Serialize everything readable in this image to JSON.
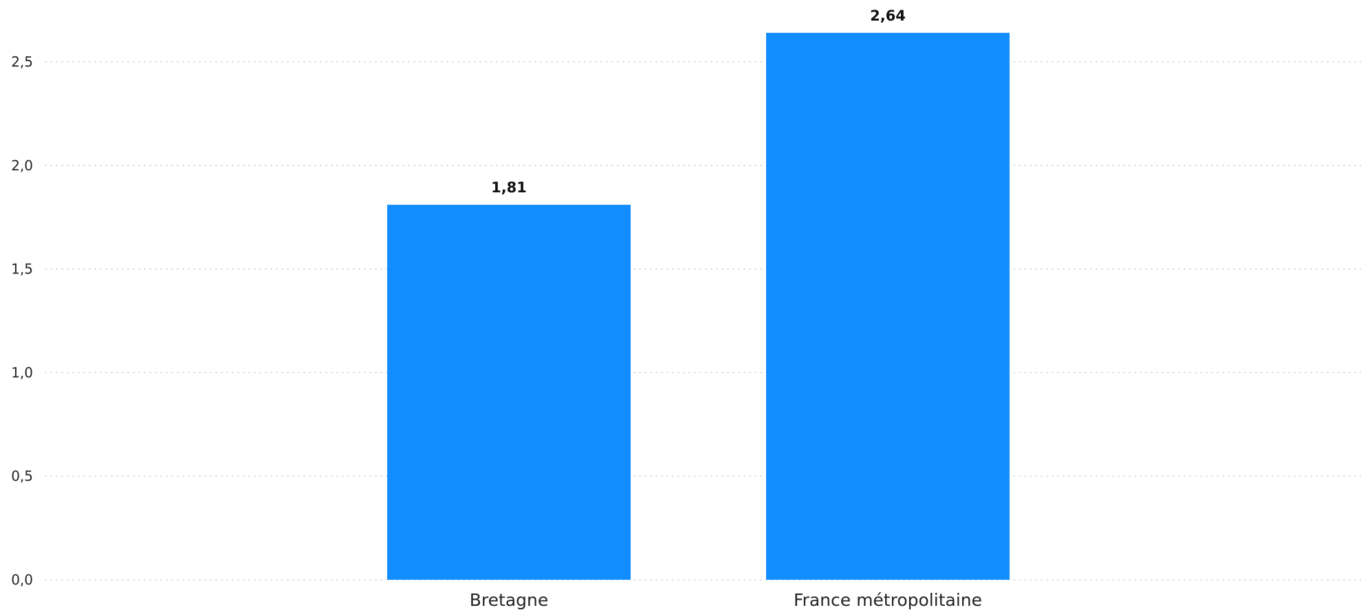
{
  "chart_data": {
    "type": "bar",
    "categories": [
      "Bretagne",
      "France métropolitaine"
    ],
    "values": [
      1.81,
      2.64
    ],
    "value_labels": [
      "1,81",
      "2,64"
    ],
    "y_ticks": [
      0,
      0.5,
      1,
      1.5,
      2,
      2.5
    ],
    "y_tick_labels": [
      "0,0",
      "0,5",
      "1,0",
      "1,5",
      "2,0",
      "2,5"
    ],
    "ylim": [
      0,
      2.64
    ],
    "grid": true,
    "bar_color": "#118DFF",
    "title": "",
    "xlabel": "",
    "ylabel": ""
  }
}
